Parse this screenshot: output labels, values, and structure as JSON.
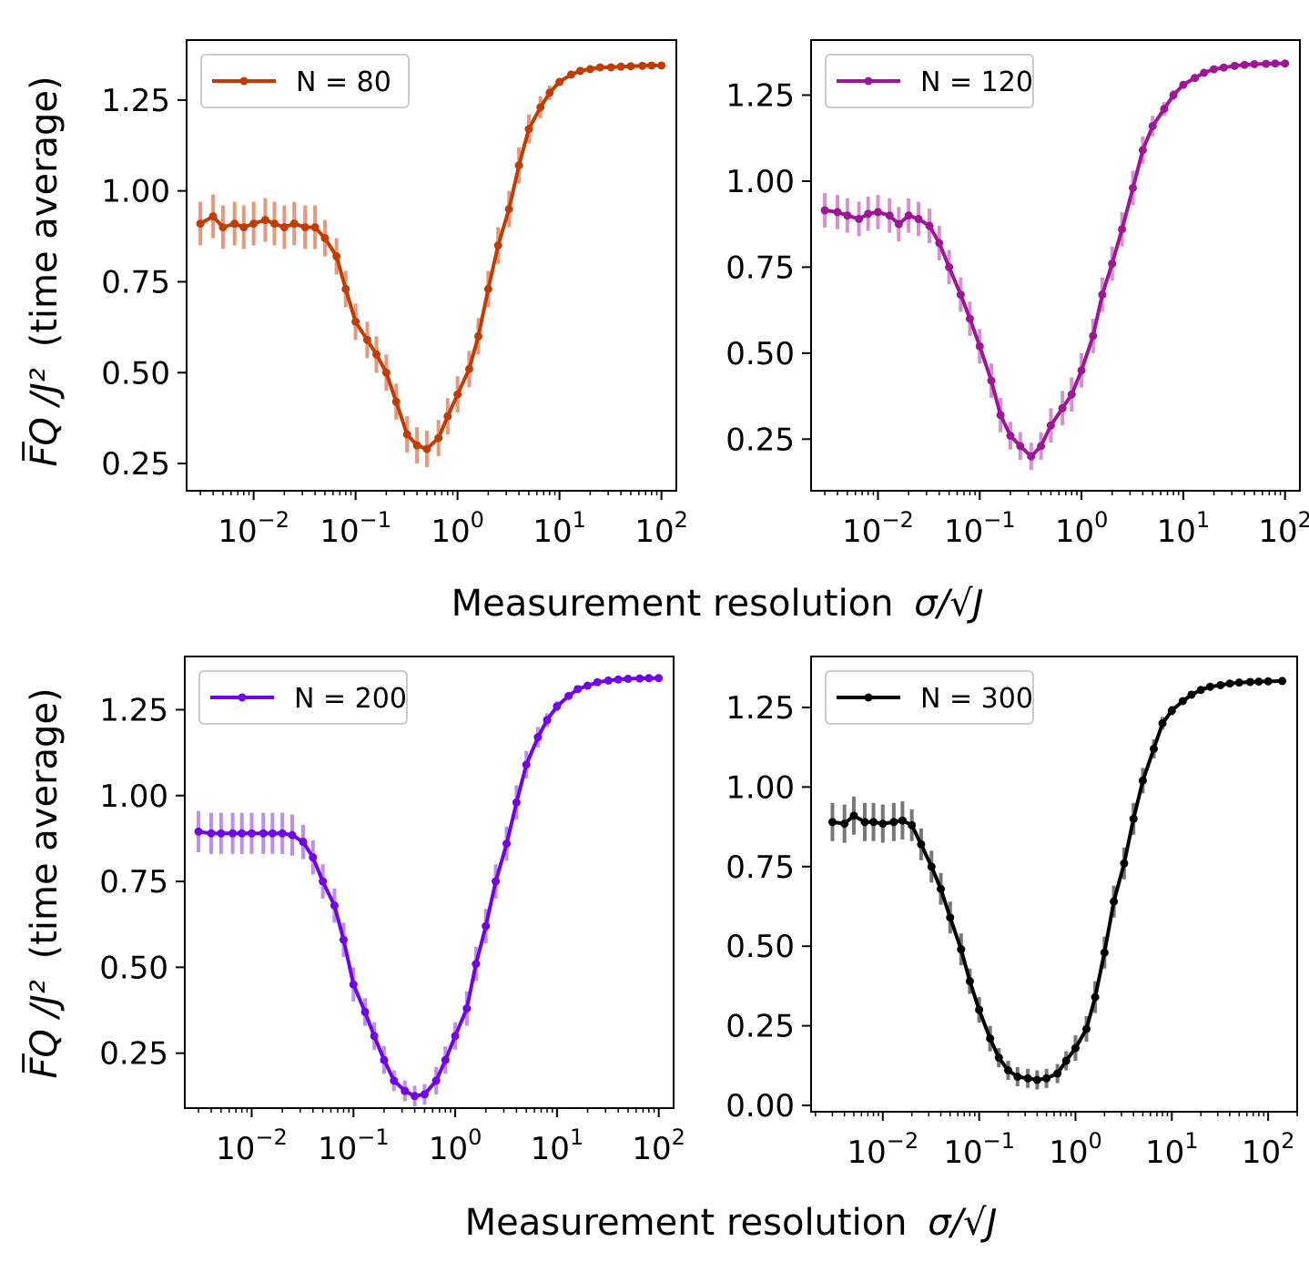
{
  "figure": {
    "xlabel_top": "Measurement resolution",
    "xlabel_bottom": "Measurement resolution",
    "xlabel_math": "σ/√J",
    "ylabel_text": "(time average)",
    "ylabel_math": "F̅Q /J²"
  },
  "chart_data": [
    {
      "type": "line",
      "series_name": "N = 80",
      "legend_label": "N = 80",
      "color": "#c23b00",
      "errcolor": "#e8977a",
      "xscale": "log",
      "x": [
        0.003,
        0.004,
        0.005,
        0.0065,
        0.008,
        0.01,
        0.013,
        0.016,
        0.02,
        0.025,
        0.032,
        0.04,
        0.05,
        0.065,
        0.08,
        0.1,
        0.13,
        0.16,
        0.2,
        0.25,
        0.32,
        0.4,
        0.5,
        0.65,
        0.8,
        1.0,
        1.3,
        1.6,
        2.0,
        2.5,
        3.2,
        4.0,
        5.0,
        6.5,
        8.0,
        10,
        13,
        16,
        20,
        25,
        32,
        40,
        50,
        65,
        80,
        100
      ],
      "y": [
        0.91,
        0.93,
        0.9,
        0.91,
        0.9,
        0.91,
        0.92,
        0.91,
        0.9,
        0.91,
        0.9,
        0.9,
        0.87,
        0.82,
        0.73,
        0.64,
        0.59,
        0.55,
        0.5,
        0.42,
        0.33,
        0.3,
        0.29,
        0.32,
        0.38,
        0.44,
        0.51,
        0.6,
        0.73,
        0.85,
        0.95,
        1.07,
        1.17,
        1.23,
        1.27,
        1.3,
        1.32,
        1.33,
        1.335,
        1.34,
        1.34,
        1.342,
        1.343,
        1.344,
        1.345,
        1.345
      ],
      "err": [
        0.06,
        0.06,
        0.06,
        0.06,
        0.06,
        0.06,
        0.06,
        0.06,
        0.06,
        0.06,
        0.06,
        0.06,
        0.05,
        0.05,
        0.05,
        0.05,
        0.05,
        0.05,
        0.05,
        0.05,
        0.05,
        0.05,
        0.05,
        0.05,
        0.05,
        0.05,
        0.05,
        0.05,
        0.05,
        0.05,
        0.05,
        0.05,
        0.04,
        0.03,
        0.02,
        0.01,
        0.01,
        0.005,
        0.005,
        0.005,
        0.005,
        0.005,
        0.005,
        0.005,
        0.005,
        0.005
      ],
      "xlim": [
        0.0022,
        140
      ],
      "ylim": [
        0.175,
        1.415
      ],
      "yticks": [
        0.25,
        0.5,
        0.75,
        1.0,
        1.25
      ],
      "ytick_labels": [
        "0.25",
        "0.50",
        "0.75",
        "1.00",
        "1.25"
      ],
      "xticks": [
        0.01,
        0.1,
        1,
        10,
        100
      ],
      "xtick_labels": [
        {
          "base": "10",
          "exp": "−2"
        },
        {
          "base": "10",
          "exp": "−1"
        },
        {
          "base": "10",
          "exp": "0"
        },
        {
          "base": "10",
          "exp": "1"
        },
        {
          "base": "10",
          "exp": "2"
        }
      ],
      "legend_position": "upper-left",
      "ylabel": true
    },
    {
      "type": "line",
      "series_name": "N = 120",
      "legend_label": "N = 120",
      "color": "#a01497",
      "errcolor": "#d590d0",
      "xscale": "log",
      "x": [
        0.003,
        0.004,
        0.005,
        0.0065,
        0.008,
        0.01,
        0.013,
        0.016,
        0.02,
        0.025,
        0.032,
        0.04,
        0.05,
        0.065,
        0.08,
        0.1,
        0.13,
        0.16,
        0.2,
        0.25,
        0.32,
        0.4,
        0.5,
        0.65,
        0.8,
        1.0,
        1.3,
        1.6,
        2.0,
        2.5,
        3.2,
        4.0,
        5.0,
        6.5,
        8.0,
        10,
        13,
        16,
        20,
        25,
        32,
        40,
        50,
        65,
        80,
        100
      ],
      "y": [
        0.915,
        0.91,
        0.9,
        0.89,
        0.905,
        0.91,
        0.9,
        0.875,
        0.9,
        0.89,
        0.87,
        0.82,
        0.75,
        0.67,
        0.6,
        0.52,
        0.42,
        0.32,
        0.26,
        0.23,
        0.2,
        0.23,
        0.29,
        0.34,
        0.38,
        0.45,
        0.55,
        0.67,
        0.76,
        0.86,
        0.98,
        1.09,
        1.16,
        1.21,
        1.25,
        1.28,
        1.3,
        1.315,
        1.325,
        1.33,
        1.335,
        1.338,
        1.34,
        1.341,
        1.342,
        1.342
      ],
      "err": [
        0.05,
        0.05,
        0.05,
        0.05,
        0.05,
        0.05,
        0.05,
        0.05,
        0.05,
        0.05,
        0.05,
        0.05,
        0.05,
        0.05,
        0.05,
        0.05,
        0.05,
        0.05,
        0.04,
        0.04,
        0.04,
        0.04,
        0.05,
        0.05,
        0.05,
        0.05,
        0.05,
        0.05,
        0.05,
        0.05,
        0.05,
        0.04,
        0.03,
        0.02,
        0.015,
        0.01,
        0.01,
        0.005,
        0.005,
        0.005,
        0.005,
        0.005,
        0.005,
        0.005,
        0.005,
        0.005
      ],
      "xlim": [
        0.0022,
        140
      ],
      "ylim": [
        0.1,
        1.41
      ],
      "yticks": [
        0.25,
        0.5,
        0.75,
        1.0,
        1.25
      ],
      "ytick_labels": [
        "0.25",
        "0.50",
        "0.75",
        "1.00",
        "1.25"
      ],
      "xticks": [
        0.01,
        0.1,
        1,
        10,
        100
      ],
      "xtick_labels": [
        {
          "base": "10",
          "exp": "−2"
        },
        {
          "base": "10",
          "exp": "−1"
        },
        {
          "base": "10",
          "exp": "0"
        },
        {
          "base": "10",
          "exp": "1"
        },
        {
          "base": "10",
          "exp": "2"
        }
      ],
      "legend_position": "upper-left",
      "ylabel": false
    },
    {
      "type": "line",
      "series_name": "N = 200",
      "legend_label": "N = 200",
      "color": "#7000ee",
      "errcolor": "#bb8ef2",
      "xscale": "log",
      "x": [
        0.003,
        0.004,
        0.005,
        0.0065,
        0.008,
        0.01,
        0.013,
        0.016,
        0.02,
        0.025,
        0.032,
        0.04,
        0.05,
        0.065,
        0.08,
        0.1,
        0.13,
        0.16,
        0.2,
        0.25,
        0.32,
        0.4,
        0.5,
        0.65,
        0.8,
        1.0,
        1.3,
        1.6,
        2.0,
        2.5,
        3.2,
        4.0,
        5.0,
        6.5,
        8.0,
        10,
        13,
        16,
        20,
        25,
        32,
        40,
        50,
        65,
        80,
        100
      ],
      "y": [
        0.895,
        0.89,
        0.89,
        0.89,
        0.89,
        0.89,
        0.89,
        0.89,
        0.89,
        0.885,
        0.865,
        0.82,
        0.75,
        0.68,
        0.58,
        0.45,
        0.37,
        0.3,
        0.23,
        0.17,
        0.14,
        0.125,
        0.13,
        0.17,
        0.23,
        0.3,
        0.38,
        0.51,
        0.62,
        0.75,
        0.86,
        0.98,
        1.09,
        1.17,
        1.22,
        1.26,
        1.29,
        1.31,
        1.32,
        1.33,
        1.335,
        1.338,
        1.34,
        1.341,
        1.342,
        1.342
      ],
      "err": [
        0.06,
        0.06,
        0.06,
        0.06,
        0.06,
        0.06,
        0.06,
        0.06,
        0.06,
        0.06,
        0.05,
        0.05,
        0.05,
        0.05,
        0.05,
        0.05,
        0.04,
        0.04,
        0.04,
        0.03,
        0.03,
        0.03,
        0.03,
        0.04,
        0.04,
        0.04,
        0.05,
        0.05,
        0.05,
        0.05,
        0.05,
        0.05,
        0.04,
        0.03,
        0.02,
        0.015,
        0.01,
        0.005,
        0.005,
        0.005,
        0.005,
        0.005,
        0.005,
        0.005,
        0.005,
        0.005
      ],
      "xlim": [
        0.0022,
        140
      ],
      "ylim": [
        0.09,
        1.405
      ],
      "yticks": [
        0.25,
        0.5,
        0.75,
        1.0,
        1.25
      ],
      "ytick_labels": [
        "0.25",
        "0.50",
        "0.75",
        "1.00",
        "1.25"
      ],
      "xticks": [
        0.01,
        0.1,
        1,
        10,
        100
      ],
      "xtick_labels": [
        {
          "base": "10",
          "exp": "−2"
        },
        {
          "base": "10",
          "exp": "−1"
        },
        {
          "base": "10",
          "exp": "0"
        },
        {
          "base": "10",
          "exp": "1"
        },
        {
          "base": "10",
          "exp": "2"
        }
      ],
      "legend_position": "upper-left",
      "ylabel": true
    },
    {
      "type": "line",
      "series_name": "N = 300",
      "legend_label": "N = 300",
      "color": "#000000",
      "errcolor": "#777777",
      "xscale": "log",
      "x": [
        0.003,
        0.004,
        0.005,
        0.0065,
        0.008,
        0.01,
        0.013,
        0.016,
        0.02,
        0.025,
        0.032,
        0.04,
        0.05,
        0.065,
        0.08,
        0.1,
        0.13,
        0.16,
        0.2,
        0.25,
        0.32,
        0.4,
        0.5,
        0.65,
        0.8,
        1.0,
        1.3,
        1.6,
        2.0,
        2.5,
        3.2,
        4.0,
        5.0,
        6.5,
        8.0,
        10,
        13,
        16,
        20,
        25,
        32,
        40,
        50,
        65,
        80,
        100,
        140
      ],
      "y": [
        0.89,
        0.885,
        0.91,
        0.89,
        0.89,
        0.885,
        0.89,
        0.895,
        0.88,
        0.82,
        0.75,
        0.68,
        0.59,
        0.49,
        0.39,
        0.3,
        0.21,
        0.15,
        0.11,
        0.09,
        0.085,
        0.08,
        0.085,
        0.1,
        0.14,
        0.18,
        0.24,
        0.34,
        0.48,
        0.64,
        0.76,
        0.9,
        1.02,
        1.12,
        1.2,
        1.24,
        1.27,
        1.29,
        1.305,
        1.315,
        1.32,
        1.325,
        1.328,
        1.33,
        1.331,
        1.332,
        1.333
      ],
      "err": [
        0.06,
        0.06,
        0.06,
        0.06,
        0.06,
        0.06,
        0.06,
        0.06,
        0.05,
        0.05,
        0.05,
        0.05,
        0.05,
        0.05,
        0.04,
        0.04,
        0.04,
        0.03,
        0.03,
        0.03,
        0.03,
        0.03,
        0.03,
        0.03,
        0.03,
        0.04,
        0.04,
        0.05,
        0.05,
        0.05,
        0.05,
        0.05,
        0.04,
        0.03,
        0.02,
        0.015,
        0.01,
        0.005,
        0.005,
        0.005,
        0.005,
        0.005,
        0.005,
        0.005,
        0.005,
        0.005,
        0.005
      ],
      "xlim": [
        0.0018,
        200
      ],
      "ylim": [
        -0.02,
        1.41
      ],
      "yticks": [
        0.0,
        0.25,
        0.5,
        0.75,
        1.0,
        1.25
      ],
      "ytick_labels": [
        "0.00",
        "0.25",
        "0.50",
        "0.75",
        "1.00",
        "1.25"
      ],
      "xticks": [
        0.01,
        0.1,
        1,
        10,
        100
      ],
      "xtick_labels": [
        {
          "base": "10",
          "exp": "−2"
        },
        {
          "base": "10",
          "exp": "−1"
        },
        {
          "base": "10",
          "exp": "0"
        },
        {
          "base": "10",
          "exp": "1"
        },
        {
          "base": "10",
          "exp": "2"
        }
      ],
      "legend_position": "upper-left",
      "ylabel": false
    }
  ]
}
